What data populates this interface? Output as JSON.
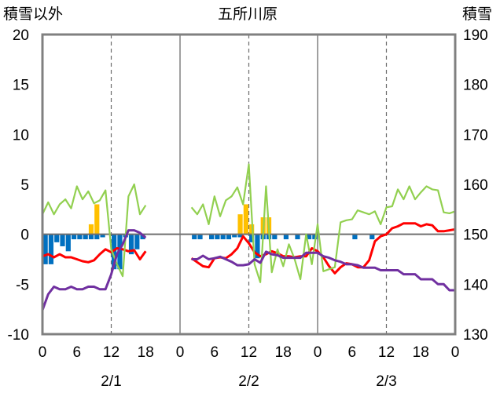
{
  "labels": {
    "left_axis": "積雪以外",
    "title": "五所川原",
    "right_axis": "積雪"
  },
  "chart_data": {
    "type": "mixed",
    "title": "五所川原",
    "y_left": {
      "label": "積雪以外",
      "range": [
        -10,
        20
      ],
      "ticks": [
        -10,
        -5,
        0,
        5,
        10,
        15,
        20
      ]
    },
    "y_right": {
      "label": "積雪",
      "range": [
        130,
        190
      ],
      "ticks": [
        130,
        140,
        150,
        160,
        170,
        180,
        190
      ]
    },
    "x": {
      "range_hours": [
        0,
        72
      ],
      "tick_labels": [
        "0",
        "6",
        "12",
        "18",
        "0",
        "6",
        "12",
        "18",
        "0",
        "6",
        "12",
        "18",
        "0"
      ],
      "date_labels": [
        "2/1",
        "2/2",
        "2/3"
      ]
    },
    "grid": {
      "vertical_dashed_hours": [
        12,
        36,
        60
      ],
      "vertical_solid_hours": [
        24,
        48
      ],
      "zero_line": true
    },
    "colors": {
      "red": "#ff0000",
      "green": "#92d050",
      "purple": "#7030a0",
      "blue": "#0070c0",
      "orange": "#ffc000",
      "axis": "#808080"
    },
    "series": [
      {
        "kind": "line",
        "axis": "left",
        "color": "#ff0000",
        "points": [
          [
            0,
            -2.2
          ],
          [
            1,
            -2.0
          ],
          [
            2,
            -2.3
          ],
          [
            3,
            -2.0
          ],
          [
            4,
            -2.3
          ],
          [
            5,
            -2.3
          ],
          [
            6,
            -2.5
          ],
          [
            7,
            -2.7
          ],
          [
            8,
            -2.8
          ],
          [
            9,
            -2.6
          ],
          [
            10,
            -2.0
          ],
          [
            11,
            -1.5
          ],
          [
            12,
            -1.8
          ],
          [
            13,
            -1.4
          ],
          [
            14,
            -1.5
          ],
          [
            15,
            -1.7
          ],
          [
            16,
            -1.6
          ],
          [
            17,
            -2.5
          ],
          [
            18,
            -1.7
          ],
          [
            26,
            -2.4
          ],
          [
            27,
            -2.8
          ],
          [
            28,
            -3.2
          ],
          [
            29,
            -3.3
          ],
          [
            30,
            -2.4
          ],
          [
            31,
            -2.3
          ],
          [
            32,
            -2.4
          ],
          [
            33,
            -2.0
          ],
          [
            34,
            -1.4
          ],
          [
            35,
            -0.2
          ],
          [
            36,
            -0.9
          ],
          [
            37,
            -1.8
          ],
          [
            38,
            -2.2
          ],
          [
            39,
            -2.0
          ],
          [
            40,
            -1.7
          ],
          [
            41,
            -1.9
          ],
          [
            42,
            -2.2
          ],
          [
            43,
            -2.2
          ],
          [
            44,
            -2.3
          ],
          [
            45,
            -2.2
          ],
          [
            46,
            -2.2
          ],
          [
            47,
            -1.4
          ],
          [
            48,
            -1.7
          ],
          [
            49,
            -2.3
          ],
          [
            50,
            -3.2
          ],
          [
            51,
            -3.9
          ],
          [
            52,
            -3.3
          ],
          [
            53,
            -2.9
          ],
          [
            54,
            -3.0
          ],
          [
            55,
            -3.3
          ],
          [
            56,
            -3.3
          ],
          [
            57,
            -2.6
          ],
          [
            58,
            -0.7
          ],
          [
            59,
            -0.2
          ],
          [
            60,
            0.0
          ],
          [
            61,
            0.6
          ],
          [
            62,
            0.8
          ],
          [
            63,
            1.1
          ],
          [
            64,
            1.1
          ],
          [
            65,
            1.1
          ],
          [
            66,
            0.8
          ],
          [
            67,
            1.0
          ],
          [
            68,
            0.9
          ],
          [
            69,
            0.3
          ],
          [
            70,
            0.3
          ],
          [
            71,
            0.4
          ],
          [
            72,
            0.5
          ]
        ]
      },
      {
        "kind": "line",
        "axis": "left",
        "color": "#92d050",
        "points": [
          [
            0,
            2.0
          ],
          [
            1,
            3.2
          ],
          [
            2,
            2.0
          ],
          [
            3,
            3.0
          ],
          [
            4,
            3.5
          ],
          [
            5,
            2.6
          ],
          [
            6,
            4.8
          ],
          [
            7,
            3.5
          ],
          [
            8,
            4.3
          ],
          [
            9,
            3.1
          ],
          [
            10,
            3.4
          ],
          [
            11,
            4.4
          ],
          [
            12,
            -1.5
          ],
          [
            13,
            -3.0
          ],
          [
            14,
            -4.2
          ],
          [
            15,
            3.8
          ],
          [
            16,
            5.0
          ],
          [
            17,
            2.0
          ],
          [
            18,
            2.9
          ],
          [
            26,
            2.7
          ],
          [
            27,
            2.0
          ],
          [
            28,
            3.0
          ],
          [
            29,
            1.0
          ],
          [
            30,
            3.8
          ],
          [
            31,
            1.8
          ],
          [
            32,
            3.4
          ],
          [
            33,
            3.8
          ],
          [
            34,
            4.7
          ],
          [
            35,
            3.0
          ],
          [
            36,
            7.0
          ],
          [
            37,
            -3.0
          ],
          [
            38,
            -4.8
          ],
          [
            39,
            4.8
          ],
          [
            40,
            -3.8
          ],
          [
            41,
            -1.5
          ],
          [
            42,
            -3.2
          ],
          [
            43,
            -1.0
          ],
          [
            44,
            -2.5
          ],
          [
            45,
            -4.5
          ],
          [
            46,
            0.0
          ],
          [
            47,
            -3.0
          ],
          [
            48,
            1.0
          ],
          [
            49,
            -3.7
          ],
          [
            50,
            -3.5
          ],
          [
            51,
            -3.3
          ],
          [
            52,
            1.2
          ],
          [
            53,
            1.4
          ],
          [
            54,
            1.5
          ],
          [
            55,
            2.4
          ],
          [
            56,
            2.2
          ],
          [
            57,
            2.0
          ],
          [
            58,
            2.3
          ],
          [
            59,
            1.0
          ],
          [
            60,
            2.7
          ],
          [
            61,
            2.8
          ],
          [
            62,
            4.5
          ],
          [
            63,
            3.5
          ],
          [
            64,
            4.8
          ],
          [
            65,
            3.5
          ],
          [
            66,
            4.2
          ],
          [
            67,
            4.8
          ],
          [
            68,
            4.5
          ],
          [
            69,
            4.4
          ],
          [
            70,
            2.2
          ],
          [
            71,
            2.1
          ],
          [
            72,
            2.3
          ]
        ]
      },
      {
        "kind": "line",
        "axis": "right",
        "color": "#7030a0",
        "points": [
          [
            0,
            134.8
          ],
          [
            1,
            138.0
          ],
          [
            2,
            139.5
          ],
          [
            3,
            139.0
          ],
          [
            4,
            139.0
          ],
          [
            5,
            139.5
          ],
          [
            6,
            139.0
          ],
          [
            7,
            139.0
          ],
          [
            8,
            139.5
          ],
          [
            9,
            139.5
          ],
          [
            10,
            139.0
          ],
          [
            11,
            139.0
          ],
          [
            12,
            142.0
          ],
          [
            13,
            146.0
          ],
          [
            14,
            148.0
          ],
          [
            15,
            150.8
          ],
          [
            16,
            150.8
          ],
          [
            17,
            150.3
          ],
          [
            18,
            149.3
          ],
          [
            26,
            145.0
          ],
          [
            27,
            145.0
          ],
          [
            28,
            145.7
          ],
          [
            29,
            145.0
          ],
          [
            30,
            145.2
          ],
          [
            31,
            145.5
          ],
          [
            32,
            145.0
          ],
          [
            33,
            144.5
          ],
          [
            34,
            143.8
          ],
          [
            35,
            143.8
          ],
          [
            36,
            144.0
          ],
          [
            37,
            145.0
          ],
          [
            38,
            144.3
          ],
          [
            39,
            146.5
          ],
          [
            40,
            146.0
          ],
          [
            41,
            145.8
          ],
          [
            42,
            145.3
          ],
          [
            43,
            145.3
          ],
          [
            44,
            145.3
          ],
          [
            45,
            145.3
          ],
          [
            46,
            146.3
          ],
          [
            47,
            146.3
          ],
          [
            48,
            146.3
          ],
          [
            49,
            145.6
          ],
          [
            50,
            145.3
          ],
          [
            51,
            144.8
          ],
          [
            52,
            144.5
          ],
          [
            53,
            144.0
          ],
          [
            54,
            144.0
          ],
          [
            55,
            143.8
          ],
          [
            56,
            143.3
          ],
          [
            57,
            143.3
          ],
          [
            58,
            143.3
          ],
          [
            59,
            142.8
          ],
          [
            60,
            142.8
          ],
          [
            61,
            142.8
          ],
          [
            62,
            142.8
          ],
          [
            63,
            142.0
          ],
          [
            64,
            142.0
          ],
          [
            65,
            142.0
          ],
          [
            66,
            141.0
          ],
          [
            67,
            141.0
          ],
          [
            68,
            141.0
          ],
          [
            69,
            140.0
          ],
          [
            70,
            140.0
          ],
          [
            71,
            138.8
          ],
          [
            72,
            138.8
          ]
        ]
      },
      {
        "kind": "bar",
        "axis": "left",
        "color": "#0070c0",
        "bars": [
          [
            0,
            -3.0
          ],
          [
            1,
            -3.0
          ],
          [
            2,
            -0.8
          ],
          [
            3,
            -1.2
          ],
          [
            4,
            -1.7
          ],
          [
            5,
            -0.5
          ],
          [
            6,
            -0.5
          ],
          [
            7,
            -0.5
          ],
          [
            8,
            -0.5
          ],
          [
            9,
            -0.5
          ],
          [
            10,
            -0.3
          ],
          [
            12,
            -3.5
          ],
          [
            13,
            -3.5
          ],
          [
            14,
            -0.3
          ],
          [
            15,
            -2.0
          ],
          [
            16,
            -1.5
          ],
          [
            17,
            -0.5
          ],
          [
            26,
            -0.5
          ],
          [
            27,
            -0.5
          ],
          [
            29,
            -0.5
          ],
          [
            30,
            -0.5
          ],
          [
            31,
            -0.5
          ],
          [
            32,
            -0.5
          ],
          [
            33,
            -0.3
          ],
          [
            34,
            -0.3
          ],
          [
            36,
            -0.8
          ],
          [
            37,
            -2.4
          ],
          [
            38,
            -0.5
          ],
          [
            39,
            -0.5
          ],
          [
            40,
            -0.5
          ],
          [
            42,
            -0.5
          ],
          [
            44,
            -0.5
          ],
          [
            46,
            -0.5
          ],
          [
            47,
            -0.5
          ],
          [
            54,
            -0.5
          ],
          [
            57,
            -0.5
          ]
        ]
      },
      {
        "kind": "bar",
        "axis": "left",
        "color": "#ffc000",
        "bars": [
          [
            8,
            1.0
          ],
          [
            9,
            3.0
          ],
          [
            34,
            2.0
          ],
          [
            35,
            3.0
          ],
          [
            36,
            1.0
          ],
          [
            38,
            1.7
          ],
          [
            39,
            1.7
          ]
        ]
      }
    ]
  }
}
